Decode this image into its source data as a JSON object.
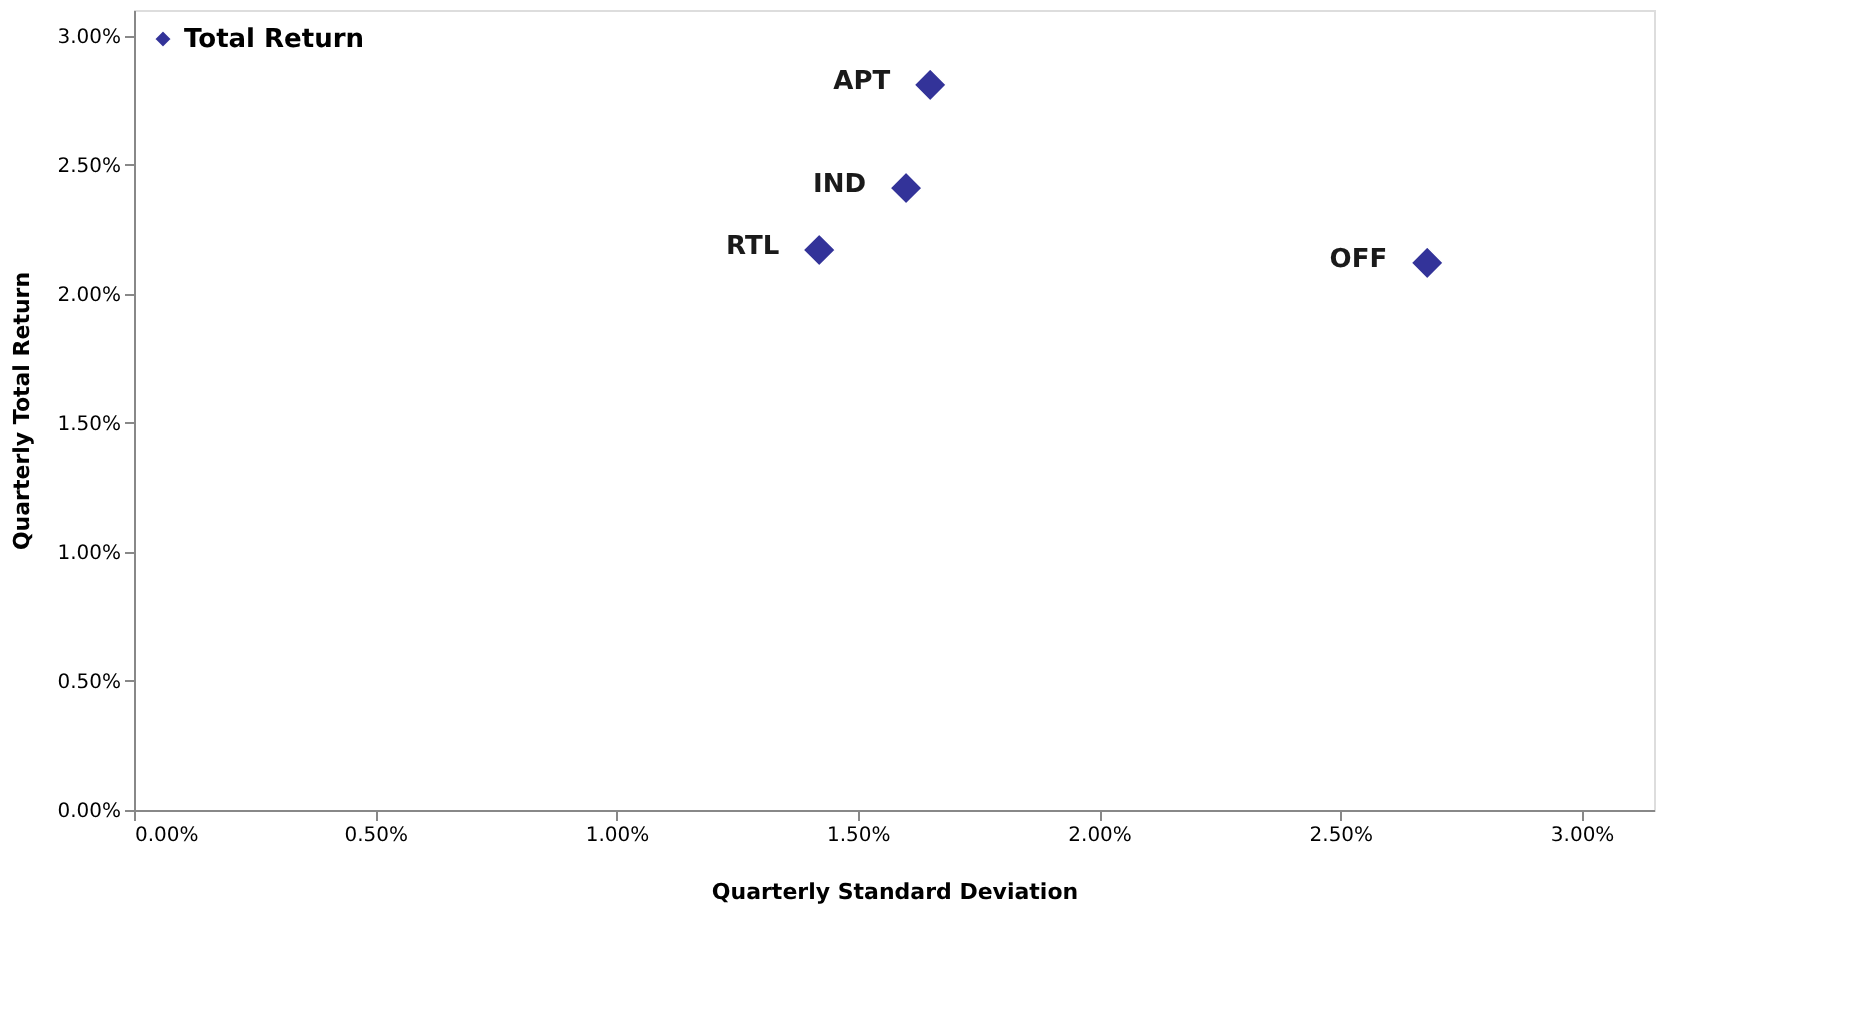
{
  "chart_data": {
    "type": "scatter",
    "xlabel": "Quarterly Standard Deviation",
    "ylabel": "Quarterly Total Return",
    "x": [
      1.65,
      1.6,
      1.42,
      2.68
    ],
    "series": [
      {
        "name": "Total Return",
        "color": "#333399",
        "values": [
          2.81,
          2.41,
          2.17,
          2.12
        ]
      }
    ],
    "annotations": [
      {
        "text": "APT",
        "x": 1.65,
        "y": 2.81
      },
      {
        "text": "IND",
        "x": 1.6,
        "y": 2.41
      },
      {
        "text": "RTL",
        "x": 1.42,
        "y": 2.17
      },
      {
        "text": "OFF",
        "x": 2.68,
        "y": 2.12
      }
    ],
    "xlim": [
      0,
      3.15
    ],
    "ylim": [
      0,
      3.1
    ],
    "xticks": [
      {
        "value": 0,
        "label": "0.00%"
      },
      {
        "value": 0.5,
        "label": "0.50%"
      },
      {
        "value": 1,
        "label": "1.00%"
      },
      {
        "value": 1.5,
        "label": "1.50%"
      },
      {
        "value": 2,
        "label": "2.00%"
      },
      {
        "value": 2.5,
        "label": "2.50%"
      },
      {
        "value": 3,
        "label": "3.00%"
      }
    ],
    "yticks": [
      {
        "value": 0,
        "label": "0.00%"
      },
      {
        "value": 0.5,
        "label": "0.50%"
      },
      {
        "value": 1,
        "label": "1.00%"
      },
      {
        "value": 1.5,
        "label": "1.50%"
      },
      {
        "value": 2,
        "label": "2.00%"
      },
      {
        "value": 2.5,
        "label": "2.50%"
      },
      {
        "value": 3,
        "label": "3.00%"
      }
    ],
    "grid": false,
    "legend": "top left",
    "marker": "diamond"
  }
}
